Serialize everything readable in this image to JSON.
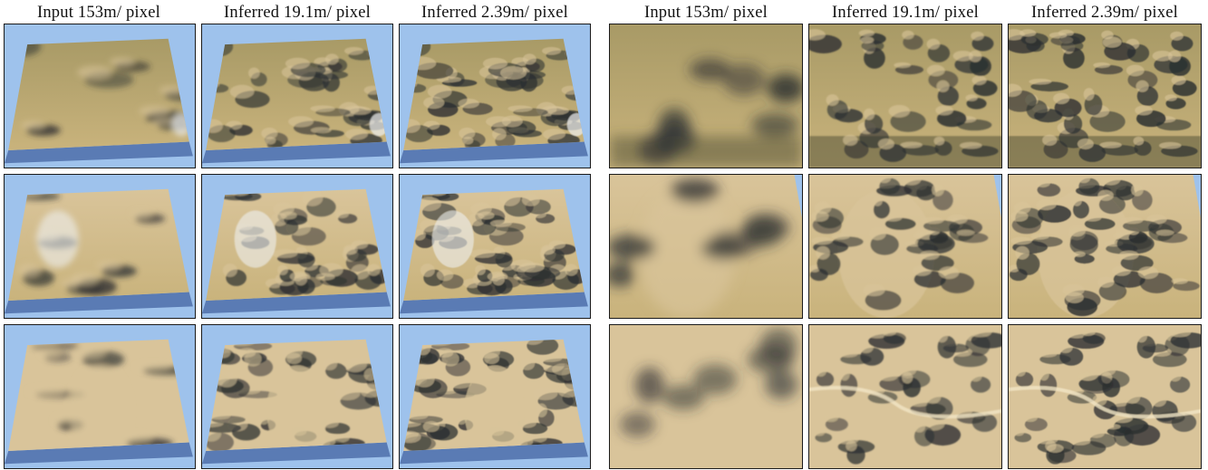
{
  "headers": [
    "Input 153m/ pixel",
    "Inferred 19.1m/ pixel",
    "Inferred 2.39m/ pixel",
    "Input 153m/ pixel",
    "Inferred 19.1m/ pixel",
    "Inferred 2.39m/ pixel"
  ],
  "panels": [
    {
      "view": "oblique",
      "row": 1,
      "column": 1,
      "detail": "low"
    },
    {
      "view": "oblique",
      "row": 1,
      "column": 2,
      "detail": "medium"
    },
    {
      "view": "oblique",
      "row": 1,
      "column": 3,
      "detail": "high"
    },
    {
      "view": "closeup",
      "row": 1,
      "column": 1,
      "detail": "low"
    },
    {
      "view": "closeup",
      "row": 1,
      "column": 2,
      "detail": "medium"
    },
    {
      "view": "closeup",
      "row": 1,
      "column": 3,
      "detail": "high"
    },
    {
      "view": "oblique",
      "row": 2,
      "column": 1,
      "detail": "low"
    },
    {
      "view": "oblique",
      "row": 2,
      "column": 2,
      "detail": "medium"
    },
    {
      "view": "oblique",
      "row": 2,
      "column": 3,
      "detail": "high"
    },
    {
      "view": "closeup",
      "row": 2,
      "column": 1,
      "detail": "low"
    },
    {
      "view": "closeup",
      "row": 2,
      "column": 2,
      "detail": "medium"
    },
    {
      "view": "closeup",
      "row": 2,
      "column": 3,
      "detail": "high"
    },
    {
      "view": "oblique",
      "row": 3,
      "column": 1,
      "detail": "low"
    },
    {
      "view": "oblique",
      "row": 3,
      "column": 2,
      "detail": "medium"
    },
    {
      "view": "oblique",
      "row": 3,
      "column": 3,
      "detail": "high"
    },
    {
      "view": "closeup",
      "row": 3,
      "column": 1,
      "detail": "low"
    },
    {
      "view": "closeup",
      "row": 3,
      "column": 2,
      "detail": "medium"
    },
    {
      "view": "closeup",
      "row": 3,
      "column": 3,
      "detail": "high"
    }
  ],
  "colors": {
    "sky": "#9ec2ec",
    "terrain_light": "#d9c49a",
    "terrain_mid": "#a89a66",
    "terrain_dark": "#4a4a32",
    "shadow": "#2a2e30",
    "snow": "#eef0f0",
    "base_edge": "#5a7bb4"
  }
}
